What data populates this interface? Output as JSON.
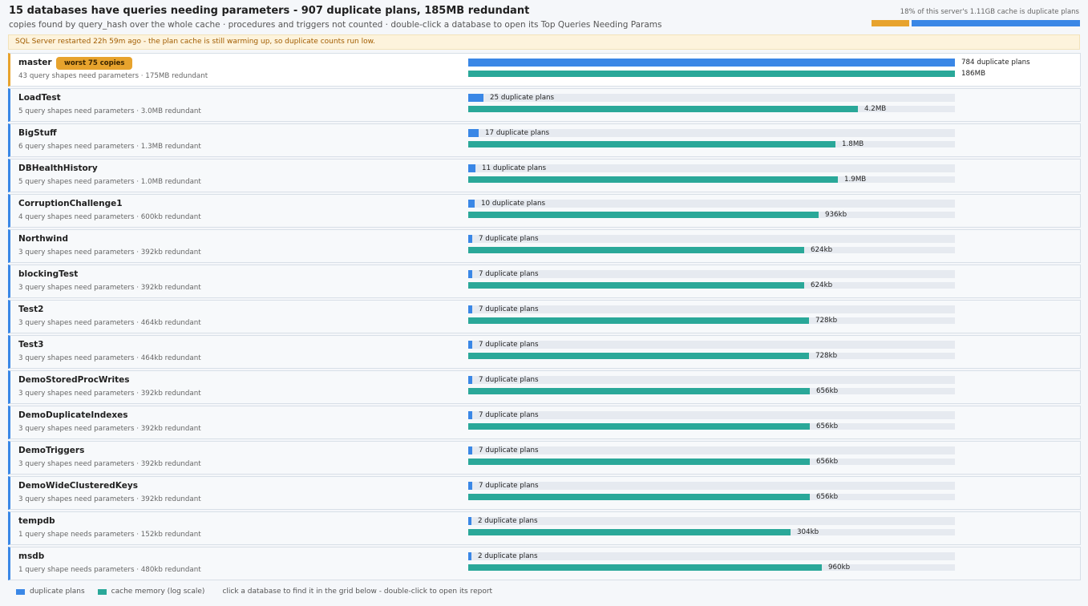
{
  "header": {
    "title": "15 databases have queries needing parameters - 907 duplicate plans, 185MB redundant",
    "subtitle": "copies found by query_hash over the whole cache  ·  procedures and triggers not counted  ·  double-click a database to open its Top Queries Needing Params",
    "cache_label": "18% of this server's 1.11GB cache is duplicate plans",
    "cache_fraction": 0.18
  },
  "banner": "SQL Server restarted 22h 59m ago - the plan cache is still warming up, so duplicate counts run low.",
  "colors": {
    "plans": "#3a87e6",
    "memory": "#2aa899",
    "worst": "#e7a32d"
  },
  "databases": [
    {
      "name": "master",
      "detail": "43 query shapes need parameters · 175MB redundant",
      "plans_label": "784 duplicate plans",
      "mem_label": "186MB",
      "plans": 784,
      "mem_fraction": 1.0,
      "badge": "worst 75 copies"
    },
    {
      "name": "LoadTest",
      "detail": "5 query shapes need parameters · 3.0MB redundant",
      "plans_label": "25 duplicate plans",
      "mem_label": "4.2MB",
      "plans": 25,
      "mem_fraction": 0.8
    },
    {
      "name": "BigStuff",
      "detail": "6 query shapes need parameters · 1.3MB redundant",
      "plans_label": "17 duplicate plans",
      "mem_label": "1.8MB",
      "plans": 17,
      "mem_fraction": 0.755
    },
    {
      "name": "DBHealthHistory",
      "detail": "5 query shapes need parameters · 1.0MB redundant",
      "plans_label": "11 duplicate plans",
      "mem_label": "1.9MB",
      "plans": 11,
      "mem_fraction": 0.76
    },
    {
      "name": "CorruptionChallenge1",
      "detail": "4 query shapes need parameters · 600kb redundant",
      "plans_label": "10 duplicate plans",
      "mem_label": "936kb",
      "plans": 10,
      "mem_fraction": 0.72
    },
    {
      "name": "Northwind",
      "detail": "3 query shapes need parameters · 392kb redundant",
      "plans_label": "7 duplicate plans",
      "mem_label": "624kb",
      "plans": 7,
      "mem_fraction": 0.69
    },
    {
      "name": "blockingTest",
      "detail": "3 query shapes need parameters · 392kb redundant",
      "plans_label": "7 duplicate plans",
      "mem_label": "624kb",
      "plans": 7,
      "mem_fraction": 0.69
    },
    {
      "name": "Test2",
      "detail": "3 query shapes need parameters · 464kb redundant",
      "plans_label": "7 duplicate plans",
      "mem_label": "728kb",
      "plans": 7,
      "mem_fraction": 0.7
    },
    {
      "name": "Test3",
      "detail": "3 query shapes need parameters · 464kb redundant",
      "plans_label": "7 duplicate plans",
      "mem_label": "728kb",
      "plans": 7,
      "mem_fraction": 0.7
    },
    {
      "name": "DemoStoredProcWrites",
      "detail": "3 query shapes need parameters · 392kb redundant",
      "plans_label": "7 duplicate plans",
      "mem_label": "656kb",
      "plans": 7,
      "mem_fraction": 0.702
    },
    {
      "name": "DemoDuplicateIndexes",
      "detail": "3 query shapes need parameters · 392kb redundant",
      "plans_label": "7 duplicate plans",
      "mem_label": "656kb",
      "plans": 7,
      "mem_fraction": 0.702
    },
    {
      "name": "DemoTriggers",
      "detail": "3 query shapes need parameters · 392kb redundant",
      "plans_label": "7 duplicate plans",
      "mem_label": "656kb",
      "plans": 7,
      "mem_fraction": 0.702
    },
    {
      "name": "DemoWideClusteredKeys",
      "detail": "3 query shapes need parameters · 392kb redundant",
      "plans_label": "7 duplicate plans",
      "mem_label": "656kb",
      "plans": 7,
      "mem_fraction": 0.702
    },
    {
      "name": "tempdb",
      "detail": "1 query shape needs parameters · 152kb redundant",
      "plans_label": "2 duplicate plans",
      "mem_label": "304kb",
      "plans": 2,
      "mem_fraction": 0.662
    },
    {
      "name": "msdb",
      "detail": "1 query shape needs parameters · 480kb redundant",
      "plans_label": "2 duplicate plans",
      "mem_label": "960kb",
      "plans": 2,
      "mem_fraction": 0.727
    }
  ],
  "legend": {
    "plans": "duplicate plans",
    "memory": "cache memory (log scale)",
    "hint": "click a database to find it in the grid below - double-click to open its report"
  }
}
